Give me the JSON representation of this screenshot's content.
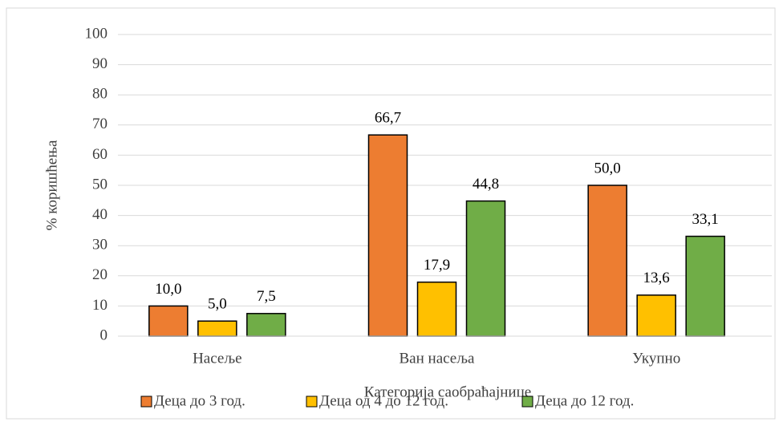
{
  "chart_data": {
    "type": "bar",
    "x_label": "Категорија саобраћајнице",
    "y_label": "% коришћења",
    "categories": [
      "Насеље",
      "Ван насеља",
      "Укупно"
    ],
    "series": [
      {
        "name": "Деца до 3 год.",
        "color": "#ED7D31",
        "values": [
          10.0,
          66.7,
          50.0
        ],
        "value_labels": [
          "10,0",
          "66,7",
          "50,0"
        ]
      },
      {
        "name": "Деца од 4 до 12 год.",
        "color": "#FFC000",
        "values": [
          5.0,
          17.9,
          13.6
        ],
        "value_labels": [
          "5,0",
          "17,9",
          "13,6"
        ]
      },
      {
        "name": "Деца до 12 год.",
        "color": "#70AD47",
        "values": [
          7.5,
          44.8,
          33.1
        ],
        "value_labels": [
          "7,5",
          "44,8",
          "33,1"
        ]
      }
    ],
    "ylim": [
      0,
      100
    ],
    "yticks": [
      0,
      10,
      20,
      30,
      40,
      50,
      60,
      70,
      80,
      90,
      100
    ],
    "grid": true,
    "legend": "bottom"
  }
}
